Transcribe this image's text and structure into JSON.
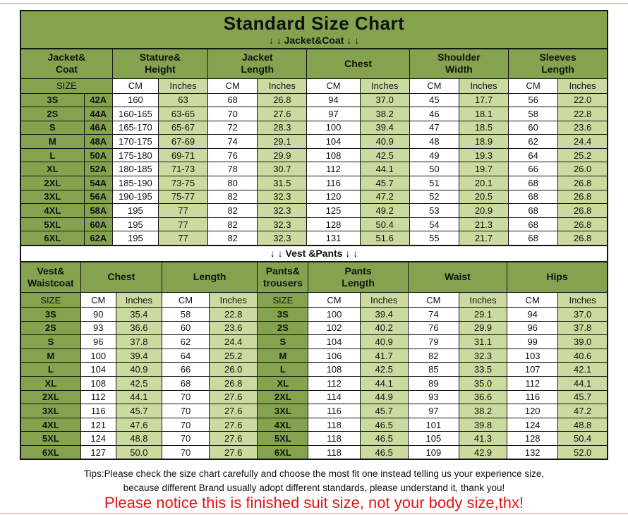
{
  "page": {
    "title": "Standard Size Chart",
    "jacket_banner": "↓ ↓  Jacket&Coat ↓ ↓",
    "vest_banner": "↓ ↓  Vest &Pants ↓ ↓",
    "tips_line1": "Tips:Please check the size chart carefully and choose the most fit one instead telling us your experience size,",
    "tips_line2": "because different Brand usually adopt different standards, please understand it, thank you!",
    "notice": "Please notice this is finished suit size, not your body size,thx!"
  },
  "units": {
    "size": "SIZE",
    "cm": "CM",
    "inches": "Inches"
  },
  "colors": {
    "header_green": "#85a34e",
    "light_green": "#cbda9f",
    "white": "#ffffff",
    "border_black": "#141414",
    "notice_red": "#e51414"
  },
  "jacket_table": {
    "groups": [
      "Jacket&\nCoat",
      "Stature&\nHeight",
      "Jacket\nLength",
      "Chest",
      "Shoulder\nWidth",
      "Sleeves\nLength"
    ],
    "rows": [
      [
        "3S",
        "42A",
        "160",
        "63",
        "68",
        "26.8",
        "94",
        "37.0",
        "45",
        "17.7",
        "56",
        "22.0"
      ],
      [
        "2S",
        "44A",
        "160-165",
        "63-65",
        "70",
        "27.6",
        "97",
        "38.2",
        "46",
        "18.1",
        "58",
        "22.8"
      ],
      [
        "S",
        "46A",
        "165-170",
        "65-67",
        "72",
        "28.3",
        "100",
        "39.4",
        "47",
        "18.5",
        "60",
        "23.6"
      ],
      [
        "M",
        "48A",
        "170-175",
        "67-69",
        "74",
        "29.1",
        "104",
        "40.9",
        "48",
        "18.9",
        "62",
        "24.4"
      ],
      [
        "L",
        "50A",
        "175-180",
        "69-71",
        "76",
        "29.9",
        "108",
        "42.5",
        "49",
        "19.3",
        "64",
        "25.2"
      ],
      [
        "XL",
        "52A",
        "180-185",
        "71-73",
        "78",
        "30.7",
        "112",
        "44.1",
        "50",
        "19.7",
        "66",
        "26.0"
      ],
      [
        "2XL",
        "54A",
        "185-190",
        "73-75",
        "80",
        "31.5",
        "116",
        "45.7",
        "51",
        "20.1",
        "68",
        "26.8"
      ],
      [
        "3XL",
        "56A",
        "190-195",
        "75-77",
        "82",
        "32.3",
        "120",
        "47.2",
        "52",
        "20.5",
        "68",
        "26.8"
      ],
      [
        "4XL",
        "58A",
        "195",
        "77",
        "82",
        "32.3",
        "125",
        "49.2",
        "53",
        "20.9",
        "68",
        "26.8"
      ],
      [
        "5XL",
        "60A",
        "195",
        "77",
        "82",
        "32.3",
        "128",
        "50.4",
        "54",
        "21.3",
        "68",
        "26.8"
      ],
      [
        "6XL",
        "62A",
        "195",
        "77",
        "82",
        "32.3",
        "131",
        "51.6",
        "55",
        "21.7",
        "68",
        "26.8"
      ]
    ]
  },
  "vest_table": {
    "groups": [
      "Vest&\nWaistcoat",
      "Chest",
      "Length",
      "Pants&\ntrousers",
      "Pants\nLength",
      "Waist",
      "Hips"
    ],
    "rows": [
      [
        "3S",
        "90",
        "35.4",
        "58",
        "22.8",
        "3S",
        "100",
        "39.4",
        "74",
        "29.1",
        "94",
        "37.0"
      ],
      [
        "2S",
        "93",
        "36.6",
        "60",
        "23.6",
        "2S",
        "102",
        "40.2",
        "76",
        "29.9",
        "96",
        "37.8"
      ],
      [
        "S",
        "96",
        "37.8",
        "62",
        "24.4",
        "S",
        "104",
        "40.9",
        "79",
        "31.1",
        "99",
        "39.0"
      ],
      [
        "M",
        "100",
        "39.4",
        "64",
        "25.2",
        "M",
        "106",
        "41.7",
        "82",
        "32.3",
        "103",
        "40.6"
      ],
      [
        "L",
        "104",
        "40.9",
        "66",
        "26.0",
        "L",
        "108",
        "42.5",
        "85",
        "33.5",
        "107",
        "42.1"
      ],
      [
        "XL",
        "108",
        "42.5",
        "68",
        "26.8",
        "XL",
        "112",
        "44.1",
        "89",
        "35.0",
        "112",
        "44.1"
      ],
      [
        "2XL",
        "112",
        "44.1",
        "70",
        "27.6",
        "2XL",
        "114",
        "44.9",
        "93",
        "36.6",
        "116",
        "45.7"
      ],
      [
        "3XL",
        "116",
        "45.7",
        "70",
        "27.6",
        "3XL",
        "116",
        "45.7",
        "97",
        "38.2",
        "120",
        "47.2"
      ],
      [
        "4XL",
        "121",
        "47.6",
        "70",
        "27.6",
        "4XL",
        "118",
        "46.5",
        "101",
        "39.8",
        "124",
        "48.8"
      ],
      [
        "5XL",
        "124",
        "48.8",
        "70",
        "27.6",
        "5XL",
        "118",
        "46.5",
        "105",
        "41.3",
        "128",
        "50.4"
      ],
      [
        "6XL",
        "127",
        "50.0",
        "70",
        "27.6",
        "6XL",
        "118",
        "46.5",
        "109",
        "42.9",
        "132",
        "52.0"
      ]
    ]
  }
}
